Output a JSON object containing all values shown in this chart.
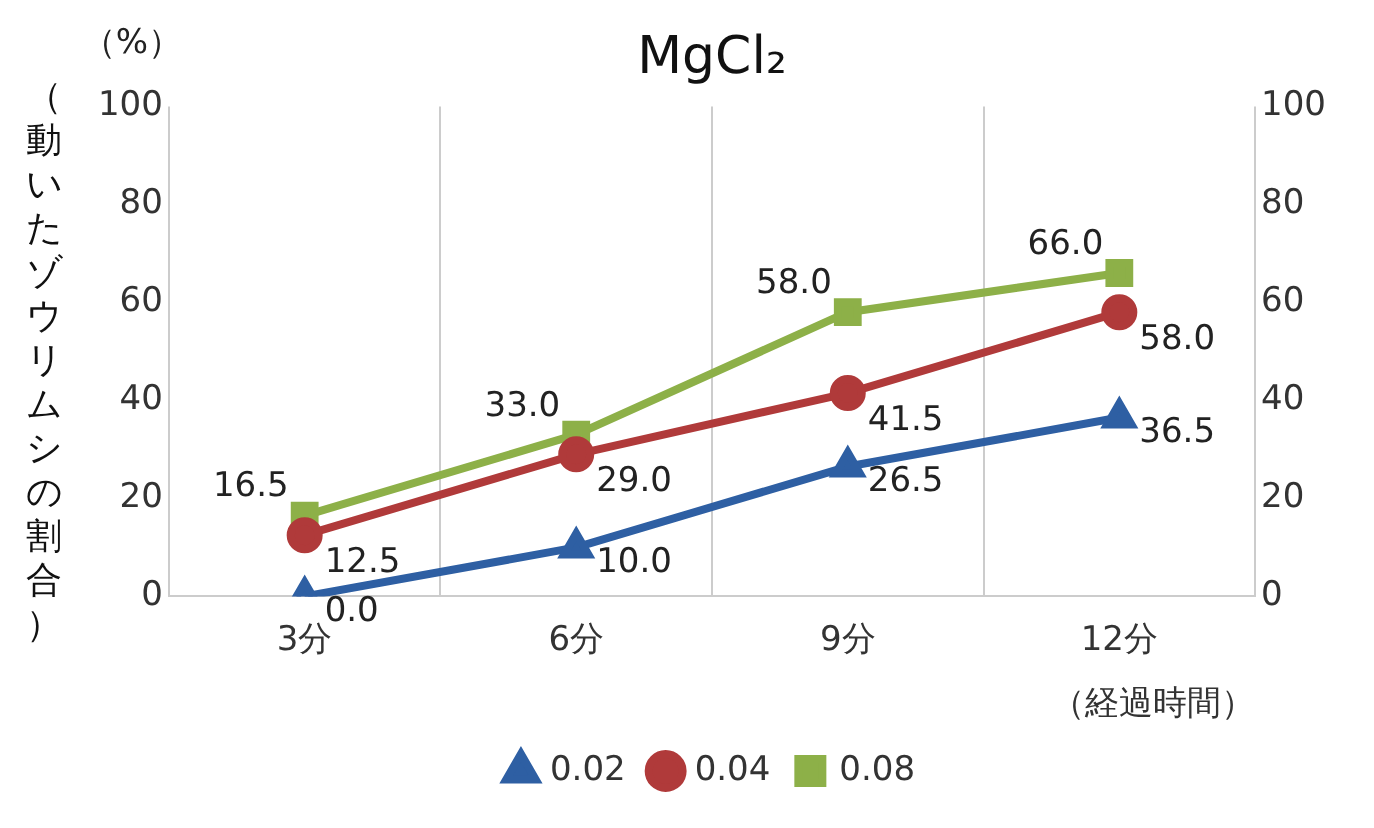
{
  "chart_data": {
    "type": "line",
    "title": "MgCl₂",
    "ylabel": "（動いたゾウリムシの割合）",
    "xlabel": "（経過時間）",
    "annotations": [
      "（%）"
    ],
    "categories": [
      "3分",
      "6分",
      "9分",
      "12分"
    ],
    "series": [
      {
        "name": "0.02",
        "color": "#2e5fa3",
        "marker": "triangle",
        "values": [
          0,
          10,
          26.5,
          36.5
        ],
        "value_labels": [
          "0.0",
          "10.0",
          "26.5",
          "36.5"
        ]
      },
      {
        "name": "0.04",
        "color": "#b03a3a",
        "marker": "circle",
        "values": [
          12.5,
          29,
          41.5,
          58
        ],
        "value_labels": [
          "12.5",
          "29.0",
          "41.5",
          "58.0"
        ]
      },
      {
        "name": "0.08",
        "color": "#8db048",
        "marker": "square",
        "values": [
          16.5,
          33,
          58,
          66
        ],
        "value_labels": [
          "16.5",
          "33.0",
          "58.0",
          "66.0"
        ]
      }
    ],
    "ylim": [
      0,
      100
    ],
    "yticks": [
      0,
      20,
      40,
      60,
      80,
      100
    ],
    "y2lim": [
      0,
      100
    ],
    "y2ticks": [
      0,
      20,
      40,
      60,
      80,
      100
    ],
    "grid": "x",
    "legend": "bottom",
    "line_style": "solid"
  }
}
